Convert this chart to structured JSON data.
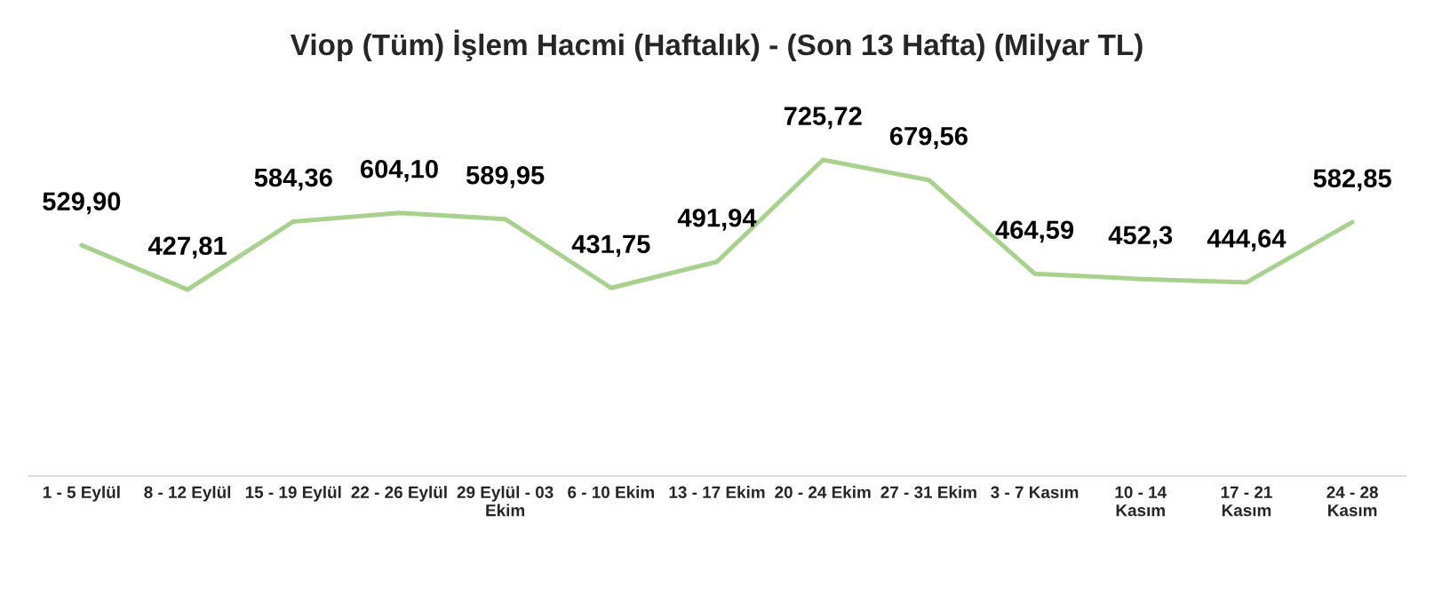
{
  "chart_data": {
    "type": "line",
    "title": "Viop (Tüm) İşlem Hacmi (Haftalık) - (Son 13 Hafta) (Milyar TL)",
    "categories": [
      "1 - 5 Eylül",
      "8 - 12 Eylül",
      "15 - 19 Eylül",
      "22 - 26 Eylül",
      "29 Eylül - 03\nEkim",
      "6 - 10 Ekim",
      "13 - 17 Ekim",
      "20 - 24 Ekim",
      "27 - 31 Ekim",
      "3 - 7 Kasım",
      "10 - 14\nKasım",
      "17 - 21\nKasım",
      "24 - 28\nKasım"
    ],
    "series": [
      {
        "color": "#a9d18e",
        "values": [
          529.9,
          427.81,
          584.36,
          604.1,
          589.95,
          431.75,
          491.94,
          725.72,
          679.56,
          464.59,
          452.3,
          444.64,
          582.85
        ],
        "value_labels": [
          "529,90",
          "427,81",
          "584,36",
          "604,10",
          "589,95",
          "431,75",
          "491,94",
          "725,72",
          "679,56",
          "464,59",
          "452,3",
          "444,64",
          "582,85"
        ]
      }
    ],
    "grid": false,
    "legend": false,
    "marker": "none",
    "line_style": "solid"
  }
}
